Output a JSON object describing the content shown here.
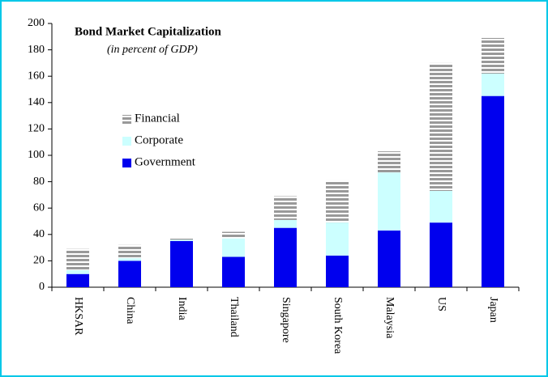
{
  "chart_data": {
    "type": "stacked_bar",
    "title": "Bond Market Capitalization",
    "subtitle": "(in percent of GDP)",
    "categories": [
      "HKSAR",
      "China",
      "India",
      "Thailand",
      "Singapore",
      "South Korea",
      "Malaysia",
      "US",
      "Japan"
    ],
    "series": [
      {
        "name": "Government",
        "color": "#0000ee",
        "values": [
          10,
          20,
          35,
          23,
          45,
          24,
          43,
          49,
          145
        ]
      },
      {
        "name": "Corporate",
        "color": "#ccffff",
        "values": [
          3,
          2,
          1,
          14,
          6,
          25,
          44,
          24,
          17
        ]
      },
      {
        "name": "Financial",
        "color": "#999999",
        "pattern": "stripes",
        "values": [
          16,
          10,
          1,
          5,
          18,
          32,
          16,
          97,
          27
        ]
      }
    ],
    "ylim": [
      0,
      200
    ],
    "yticks": [
      0,
      20,
      40,
      60,
      80,
      100,
      120,
      140,
      160,
      180,
      200
    ]
  }
}
